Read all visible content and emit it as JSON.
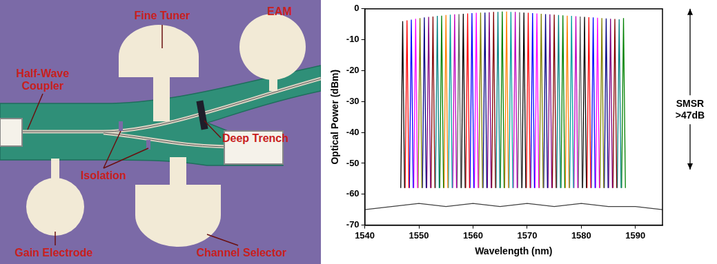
{
  "micrograph": {
    "labels": {
      "fine_tuner": "Fine Tuner",
      "eam": "EAM",
      "half_wave_coupler": "Half-Wave Coupler",
      "deep_trench": "Deep Trench",
      "isolation": "Isolation",
      "gain_electrode": "Gain Electrode",
      "channel_selector": "Channel Selector"
    }
  },
  "chart_data": {
    "type": "line",
    "x_label": "Wavelength (nm)",
    "y_label": "Optical Power (dBm)",
    "xlim": [
      1540,
      1595
    ],
    "xticks": [
      1540,
      1550,
      1560,
      1570,
      1580,
      1590
    ],
    "ylim": [
      -70,
      0
    ],
    "yticks": [
      -70,
      -60,
      -50,
      -40,
      -30,
      -20,
      -10,
      0
    ],
    "grid": false,
    "annotations": [
      {
        "text": "SMSR >47dB",
        "y": [
          0,
          -52
        ]
      }
    ],
    "series": [
      {
        "color": "#404040",
        "x": [
          1540,
          1545,
          1550,
          1555,
          1560,
          1565,
          1570,
          1575,
          1580,
          1585,
          1590,
          1595
        ],
        "values": [
          -65,
          -64,
          -63,
          -64,
          -63,
          -64,
          -63,
          -64,
          -63,
          -64,
          -64,
          -65
        ]
      },
      {
        "color": "#000000",
        "x": [
          1546.65,
          1547.0,
          1547.35
        ],
        "values": [
          -58,
          -4.0,
          -58
        ]
      },
      {
        "color": "#ff0000",
        "x": [
          1547.45,
          1547.8,
          1548.15
        ],
        "values": [
          -58,
          -3.7,
          -58
        ]
      },
      {
        "color": "#0000ff",
        "x": [
          1548.25,
          1548.6,
          1548.95
        ],
        "values": [
          -58,
          -3.5,
          -58
        ]
      },
      {
        "color": "#ff00ff",
        "x": [
          1549.05,
          1549.4,
          1549.75
        ],
        "values": [
          -58,
          -3.2,
          -58
        ]
      },
      {
        "color": "#808000",
        "x": [
          1549.85,
          1550.2,
          1550.55
        ],
        "values": [
          -58,
          -3.0,
          -58
        ]
      },
      {
        "color": "#000080",
        "x": [
          1550.65,
          1551.0,
          1551.35
        ],
        "values": [
          -58,
          -2.8,
          -58
        ]
      },
      {
        "color": "#800080",
        "x": [
          1551.45,
          1551.8,
          1552.15
        ],
        "values": [
          -58,
          -2.6,
          -58
        ]
      },
      {
        "color": "#800000",
        "x": [
          1552.25,
          1552.6,
          1552.95
        ],
        "values": [
          -58,
          -2.5,
          -58
        ]
      },
      {
        "color": "#008080",
        "x": [
          1553.05,
          1553.4,
          1553.75
        ],
        "values": [
          -58,
          -2.3,
          -58
        ]
      },
      {
        "color": "#008000",
        "x": [
          1553.85,
          1554.2,
          1554.55
        ],
        "values": [
          -58,
          -2.2,
          -58
        ]
      },
      {
        "color": "#ff8000",
        "x": [
          1554.65,
          1555.0,
          1555.35
        ],
        "values": [
          -58,
          -2.0,
          -58
        ]
      },
      {
        "color": "#00a0a0",
        "x": [
          1555.45,
          1555.8,
          1556.15
        ],
        "values": [
          -58,
          -1.9,
          -58
        ]
      },
      {
        "color": "#c000c0",
        "x": [
          1556.25,
          1556.6,
          1556.95
        ],
        "values": [
          -58,
          -1.8,
          -58
        ]
      },
      {
        "color": "#606060",
        "x": [
          1557.05,
          1557.4,
          1557.75
        ],
        "values": [
          -58,
          -1.7,
          -58
        ]
      },
      {
        "color": "#000000",
        "x": [
          1557.85,
          1558.2,
          1558.55
        ],
        "values": [
          -58,
          -1.6,
          -58
        ]
      },
      {
        "color": "#ff0000",
        "x": [
          1558.65,
          1559.0,
          1559.35
        ],
        "values": [
          -58,
          -1.5,
          -58
        ]
      },
      {
        "color": "#0000ff",
        "x": [
          1559.45,
          1559.8,
          1560.15
        ],
        "values": [
          -58,
          -1.4,
          -58
        ]
      },
      {
        "color": "#ff00ff",
        "x": [
          1560.25,
          1560.6,
          1560.95
        ],
        "values": [
          -58,
          -1.3,
          -58
        ]
      },
      {
        "color": "#808000",
        "x": [
          1561.05,
          1561.4,
          1561.75
        ],
        "values": [
          -58,
          -1.2,
          -58
        ]
      },
      {
        "color": "#000080",
        "x": [
          1561.85,
          1562.2,
          1562.55
        ],
        "values": [
          -58,
          -1.2,
          -58
        ]
      },
      {
        "color": "#800080",
        "x": [
          1562.65,
          1563.0,
          1563.35
        ],
        "values": [
          -58,
          -1.1,
          -58
        ]
      },
      {
        "color": "#800000",
        "x": [
          1563.45,
          1563.8,
          1564.15
        ],
        "values": [
          -58,
          -1.0,
          -58
        ]
      },
      {
        "color": "#008080",
        "x": [
          1564.25,
          1564.6,
          1564.95
        ],
        "values": [
          -58,
          -1.0,
          -58
        ]
      },
      {
        "color": "#008000",
        "x": [
          1565.05,
          1565.4,
          1565.75
        ],
        "values": [
          -58,
          -0.9,
          -58
        ]
      },
      {
        "color": "#ff8000",
        "x": [
          1565.85,
          1566.2,
          1566.55
        ],
        "values": [
          -58,
          -0.9,
          -58
        ]
      },
      {
        "color": "#00a0a0",
        "x": [
          1566.65,
          1567.0,
          1567.35
        ],
        "values": [
          -58,
          -1.0,
          -58
        ]
      },
      {
        "color": "#c000c0",
        "x": [
          1567.45,
          1567.8,
          1568.15
        ],
        "values": [
          -58,
          -1.0,
          -58
        ]
      },
      {
        "color": "#606060",
        "x": [
          1568.25,
          1568.6,
          1568.95
        ],
        "values": [
          -58,
          -1.1,
          -58
        ]
      },
      {
        "color": "#000000",
        "x": [
          1569.05,
          1569.4,
          1569.75
        ],
        "values": [
          -58,
          -1.2,
          -58
        ]
      },
      {
        "color": "#ff0000",
        "x": [
          1569.85,
          1570.2,
          1570.55
        ],
        "values": [
          -58,
          -1.3,
          -58
        ]
      },
      {
        "color": "#0000ff",
        "x": [
          1570.65,
          1571.0,
          1571.35
        ],
        "values": [
          -58,
          -1.4,
          -58
        ]
      },
      {
        "color": "#ff00ff",
        "x": [
          1571.45,
          1571.8,
          1572.15
        ],
        "values": [
          -58,
          -1.5,
          -58
        ]
      },
      {
        "color": "#808000",
        "x": [
          1572.25,
          1572.6,
          1572.95
        ],
        "values": [
          -58,
          -1.6,
          -58
        ]
      },
      {
        "color": "#000080",
        "x": [
          1573.05,
          1573.4,
          1573.75
        ],
        "values": [
          -58,
          -1.7,
          -58
        ]
      },
      {
        "color": "#800080",
        "x": [
          1573.85,
          1574.2,
          1574.55
        ],
        "values": [
          -58,
          -1.8,
          -58
        ]
      },
      {
        "color": "#800000",
        "x": [
          1574.65,
          1575.0,
          1575.35
        ],
        "values": [
          -58,
          -1.9,
          -58
        ]
      },
      {
        "color": "#008080",
        "x": [
          1575.45,
          1575.8,
          1576.15
        ],
        "values": [
          -58,
          -2.0,
          -58
        ]
      },
      {
        "color": "#008000",
        "x": [
          1576.25,
          1576.6,
          1576.95
        ],
        "values": [
          -58,
          -2.1,
          -58
        ]
      },
      {
        "color": "#ff8000",
        "x": [
          1577.05,
          1577.4,
          1577.75
        ],
        "values": [
          -58,
          -2.2,
          -58
        ]
      },
      {
        "color": "#00a0a0",
        "x": [
          1577.85,
          1578.2,
          1578.55
        ],
        "values": [
          -58,
          -2.3,
          -58
        ]
      },
      {
        "color": "#c000c0",
        "x": [
          1578.65,
          1579.0,
          1579.35
        ],
        "values": [
          -58,
          -2.4,
          -58
        ]
      },
      {
        "color": "#606060",
        "x": [
          1579.45,
          1579.8,
          1580.15
        ],
        "values": [
          -58,
          -2.5,
          -58
        ]
      },
      {
        "color": "#000000",
        "x": [
          1580.25,
          1580.6,
          1580.95
        ],
        "values": [
          -58,
          -2.6,
          -58
        ]
      },
      {
        "color": "#ff0000",
        "x": [
          1581.05,
          1581.4,
          1581.75
        ],
        "values": [
          -58,
          -2.7,
          -58
        ]
      },
      {
        "color": "#0000ff",
        "x": [
          1581.85,
          1582.2,
          1582.55
        ],
        "values": [
          -58,
          -2.8,
          -58
        ]
      },
      {
        "color": "#ff00ff",
        "x": [
          1582.65,
          1583.0,
          1583.35
        ],
        "values": [
          -58,
          -2.9,
          -58
        ]
      },
      {
        "color": "#808000",
        "x": [
          1583.45,
          1583.8,
          1584.15
        ],
        "values": [
          -58,
          -3.0,
          -58
        ]
      },
      {
        "color": "#000080",
        "x": [
          1584.25,
          1584.6,
          1584.95
        ],
        "values": [
          -58,
          -3.1,
          -58
        ]
      },
      {
        "color": "#800080",
        "x": [
          1585.05,
          1585.4,
          1585.75
        ],
        "values": [
          -58,
          -3.2,
          -58
        ]
      },
      {
        "color": "#800000",
        "x": [
          1585.85,
          1586.2,
          1586.55
        ],
        "values": [
          -58,
          -3.3,
          -58
        ]
      },
      {
        "color": "#008080",
        "x": [
          1586.65,
          1587.0,
          1587.35
        ],
        "values": [
          -58,
          -3.4,
          -58
        ]
      },
      {
        "color": "#008000",
        "x": [
          1587.45,
          1587.8,
          1588.15
        ],
        "values": [
          -58,
          -3.0,
          -58
        ]
      }
    ]
  }
}
